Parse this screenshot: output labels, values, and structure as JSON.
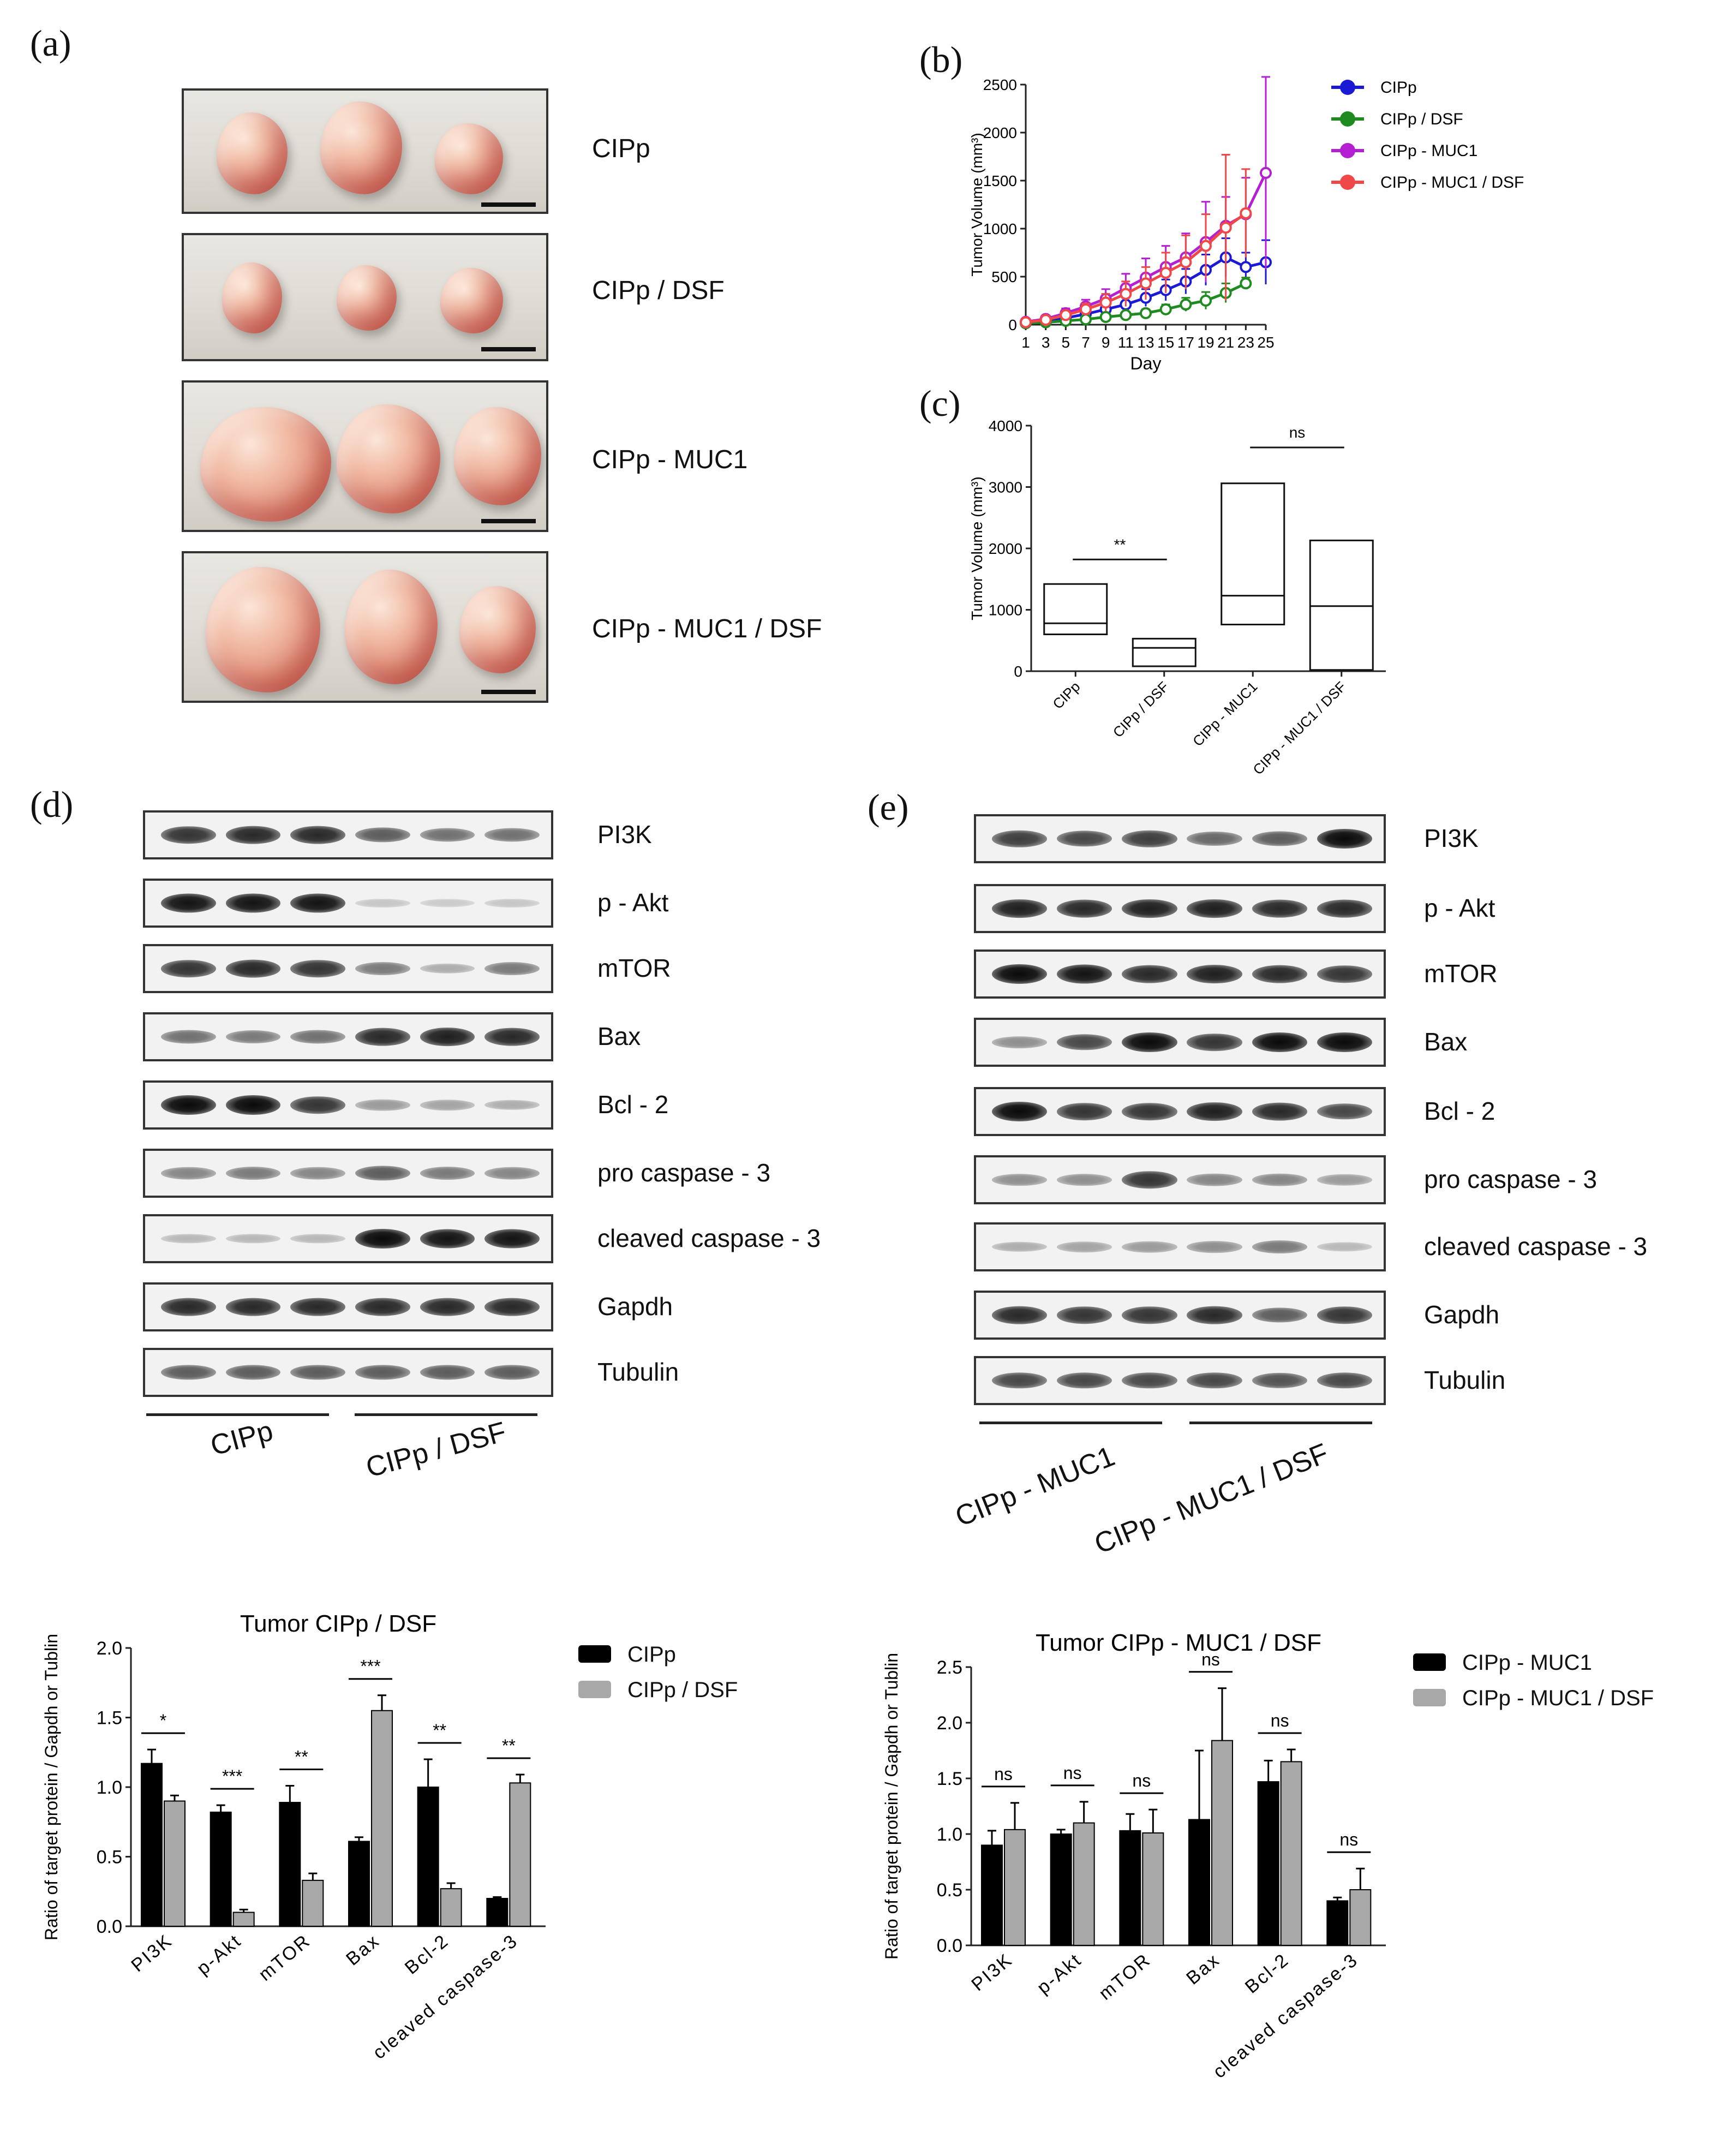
{
  "panels": {
    "a": "(a)",
    "b": "(b)",
    "c": "(c)",
    "d": "(d)",
    "e": "(e)"
  },
  "photos": {
    "labels": [
      "CIPp",
      "CIPp / DSF",
      "CIPp - MUC1",
      "CIPp - MUC1 / DSF"
    ]
  },
  "colors": {
    "cipp": "#1a1ad4",
    "cipp_dsf": "#1f8a1f",
    "muc1": "#b31fd1",
    "muc1_dsf": "#f04848",
    "bar_black": "#000000",
    "bar_grey": "#a8a8a8"
  },
  "blot_d": {
    "labels": [
      "PI3K",
      "p - Akt",
      "mTOR",
      "Bax",
      "Bcl - 2",
      "pro caspase - 3",
      "cleaved caspase - 3",
      "Gapdh",
      "Tubulin"
    ],
    "groups": [
      "CIPp",
      "CIPp / DSF"
    ]
  },
  "blot_e": {
    "labels": [
      "PI3K",
      "p - Akt",
      "mTOR",
      "Bax",
      "Bcl - 2",
      "pro caspase - 3",
      "cleaved caspase - 3",
      "Gapdh",
      "Tubulin"
    ],
    "groups": [
      "CIPp - MUC1",
      "CIPp - MUC1 / DSF"
    ]
  },
  "chart_data": [
    {
      "type": "line",
      "panel": "b",
      "xlabel": "Day",
      "ylabel": "Tumor Volume (mm³)",
      "ylim": [
        0,
        2500
      ],
      "yticks": [
        0,
        500,
        1000,
        1500,
        2000,
        2500
      ],
      "xticks": [
        1,
        3,
        5,
        7,
        9,
        11,
        13,
        15,
        17,
        19,
        21,
        23,
        25
      ],
      "legend": [
        "CIPp",
        "CIPp / DSF",
        "CIPp - MUC1",
        "CIPp - MUC1 / DSF"
      ],
      "series": [
        {
          "name": "CIPp",
          "color": "#1a1ad4",
          "x": [
            1,
            3,
            5,
            7,
            9,
            11,
            13,
            15,
            17,
            19,
            21,
            23,
            25
          ],
          "values": [
            20,
            40,
            70,
            110,
            160,
            210,
            280,
            360,
            450,
            570,
            700,
            600,
            650
          ],
          "err": [
            10,
            20,
            30,
            40,
            50,
            70,
            90,
            110,
            130,
            160,
            200,
            150,
            230
          ]
        },
        {
          "name": "CIPp / DSF",
          "color": "#1f8a1f",
          "x": [
            1,
            3,
            5,
            7,
            9,
            11,
            13,
            15,
            17,
            19,
            21,
            23
          ],
          "values": [
            15,
            25,
            40,
            55,
            80,
            100,
            120,
            160,
            210,
            250,
            330,
            430
          ],
          "err": [
            5,
            10,
            15,
            20,
            25,
            30,
            40,
            50,
            70,
            90,
            100,
            60
          ]
        },
        {
          "name": "CIPp - MUC1",
          "color": "#b31fd1",
          "x": [
            1,
            3,
            5,
            7,
            9,
            11,
            13,
            15,
            17,
            19,
            21,
            23,
            25
          ],
          "values": [
            30,
            60,
            120,
            190,
            270,
            380,
            490,
            600,
            700,
            860,
            1030,
            1150,
            1580
          ],
          "err": [
            10,
            30,
            50,
            70,
            100,
            150,
            200,
            220,
            250,
            420,
            300,
            380,
            1000
          ]
        },
        {
          "name": "CIPp - MUC1 / DSF",
          "color": "#f04848",
          "x": [
            1,
            3,
            5,
            7,
            9,
            11,
            13,
            15,
            17,
            19,
            21,
            23
          ],
          "values": [
            25,
            50,
            100,
            160,
            230,
            320,
            430,
            540,
            650,
            820,
            1010,
            1160
          ],
          "err": [
            10,
            20,
            40,
            60,
            90,
            130,
            170,
            210,
            280,
            330,
            760,
            460
          ]
        }
      ]
    },
    {
      "type": "box",
      "panel": "c",
      "ylabel": "Tumor Volume (mm³)",
      "ylim": [
        0,
        4000
      ],
      "yticks": [
        0,
        1000,
        2000,
        3000,
        4000
      ],
      "categories": [
        "CIPp",
        "CIPp / DSF",
        "CIPp - MUC1",
        "CIPp - MUC1 / DSF"
      ],
      "boxes": [
        {
          "low": 600,
          "median": 780,
          "high": 1420
        },
        {
          "low": 80,
          "median": 380,
          "high": 530
        },
        {
          "low": 760,
          "median": 1230,
          "high": 3060
        },
        {
          "low": 20,
          "median": 1060,
          "high": 2130
        }
      ],
      "annotations": [
        {
          "pair": [
            0,
            1
          ],
          "text": "**"
        },
        {
          "pair": [
            2,
            3
          ],
          "text": "ns"
        }
      ]
    },
    {
      "type": "bar",
      "panel": "d",
      "title": "Tumor CIPp / DSF",
      "ylabel": "Ratio of target protein / Gapdh or Tublin",
      "ylim": [
        0,
        2.0
      ],
      "yticks": [
        "0.0",
        "0.5",
        "1.0",
        "1.5",
        "2.0"
      ],
      "categories": [
        "PI3K",
        "p-Akt",
        "mTOR",
        "Bax",
        "Bcl-2",
        "cleaved caspase-3"
      ],
      "series": [
        {
          "name": "CIPp",
          "values": [
            1.17,
            0.82,
            0.89,
            0.61,
            1.0,
            0.2
          ],
          "err": [
            0.1,
            0.05,
            0.12,
            0.03,
            0.2,
            0.01
          ]
        },
        {
          "name": "CIPp / DSF",
          "values": [
            0.9,
            0.1,
            0.33,
            1.55,
            0.27,
            1.03
          ],
          "err": [
            0.04,
            0.02,
            0.05,
            0.11,
            0.04,
            0.06
          ]
        }
      ],
      "sig": [
        "*",
        "***",
        "**",
        "***",
        "**",
        "**"
      ]
    },
    {
      "type": "bar",
      "panel": "e",
      "title": "Tumor CIPp - MUC1 / DSF",
      "ylabel": "Ratio of target protein / Gapdh or Tublin",
      "ylim": [
        0,
        2.5
      ],
      "yticks": [
        "0.0",
        "0.5",
        "1.0",
        "1.5",
        "2.0",
        "2.5"
      ],
      "categories": [
        "PI3K",
        "p-Akt",
        "mTOR",
        "Bax",
        "Bcl-2",
        "cleaved caspase-3"
      ],
      "series": [
        {
          "name": "CIPp - MUC1",
          "values": [
            0.9,
            1.0,
            1.03,
            1.13,
            1.47,
            0.4
          ],
          "err": [
            0.13,
            0.04,
            0.15,
            0.62,
            0.19,
            0.03
          ]
        },
        {
          "name": "CIPp - MUC1 / DSF",
          "values": [
            1.04,
            1.1,
            1.01,
            1.84,
            1.65,
            0.5
          ],
          "err": [
            0.24,
            0.19,
            0.21,
            0.47,
            0.11,
            0.19
          ]
        }
      ],
      "sig": [
        "ns",
        "ns",
        "ns",
        "ns",
        "ns",
        "ns"
      ]
    }
  ]
}
